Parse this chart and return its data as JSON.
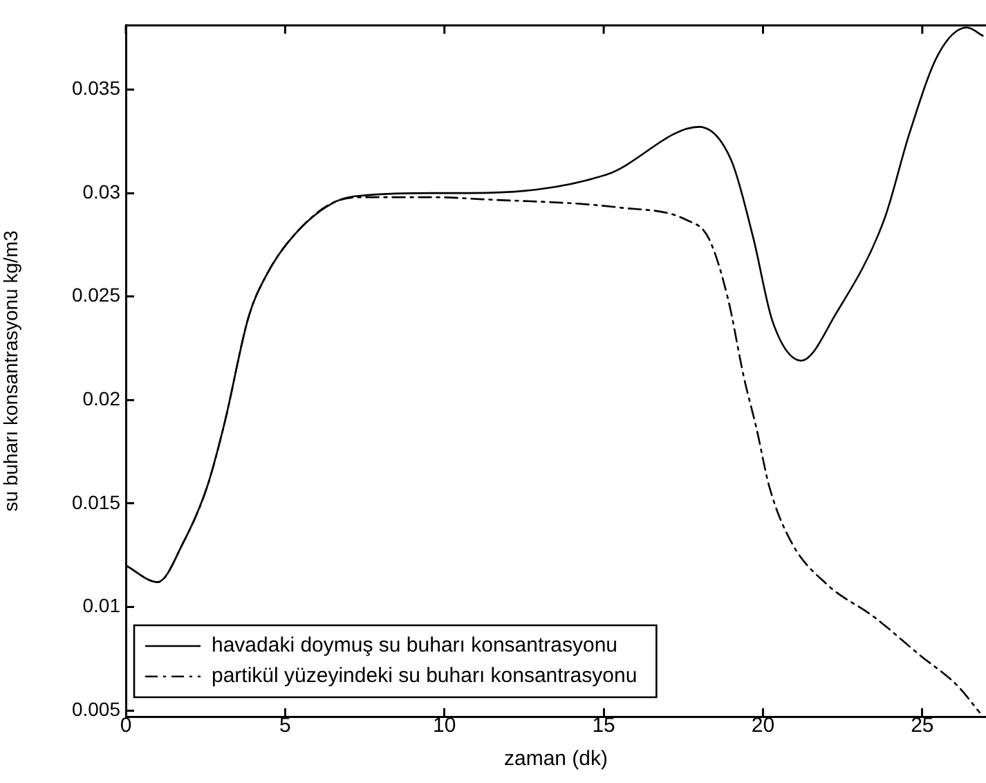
{
  "chart_data": {
    "type": "line",
    "xlabel": "zaman (dk)",
    "ylabel": "su buharı konsantrasyonu kg/m3",
    "xlim": [
      0,
      27
    ],
    "xticks": [
      0,
      5,
      10,
      15,
      20,
      25
    ],
    "ylim": [
      0.0047,
      0.0381
    ],
    "yticks": [
      0.005,
      0.01,
      0.015,
      0.02,
      0.025,
      0.03,
      0.035
    ],
    "grid": false,
    "legend": "bottom left",
    "marker": "none",
    "series": [
      {
        "name": "havadaki doymuş su buharı konsantrasyonu",
        "color": "#000000",
        "line_style": "solid",
        "x": [
          0,
          1,
          1.8,
          2.55,
          3.1,
          3.85,
          4.4,
          5.3,
          6.6,
          7.6,
          9.6,
          10.8,
          15.1,
          18.0,
          19.0,
          19.7,
          20.3,
          21.2,
          22.3,
          23.8,
          24.6,
          25.5,
          26.4,
          26.9
        ],
        "values": [
          0.012,
          0.0112,
          0.0131,
          0.0158,
          0.0189,
          0.024,
          0.026,
          0.028,
          0.0296,
          0.0299,
          0.03,
          0.03,
          0.0309,
          0.0332,
          0.0316,
          0.0278,
          0.0238,
          0.0219,
          0.0242,
          0.0287,
          0.0329,
          0.0367,
          0.038,
          0.0376
        ]
      },
      {
        "name": "partikül yüzeyindeki su buharı konsantrasyonu",
        "color": "#000000",
        "line_style": "dashed",
        "x": [
          0,
          1,
          1.8,
          2.55,
          3.1,
          3.85,
          4.4,
          5.3,
          6.6,
          7.6,
          9.6,
          11.2,
          15.5,
          17.6,
          18.3,
          18.9,
          19.4,
          19.8,
          20.2,
          20.9,
          22.0,
          23.5,
          24.9,
          26.1,
          26.8
        ],
        "values": [
          0.012,
          0.0112,
          0.0131,
          0.0158,
          0.0189,
          0.024,
          0.026,
          0.028,
          0.0296,
          0.0298,
          0.0298,
          0.0297,
          0.0293,
          0.0287,
          0.0278,
          0.0249,
          0.0211,
          0.0186,
          0.0158,
          0.0131,
          0.0111,
          0.0095,
          0.0077,
          0.0062,
          0.0049
        ]
      }
    ]
  }
}
